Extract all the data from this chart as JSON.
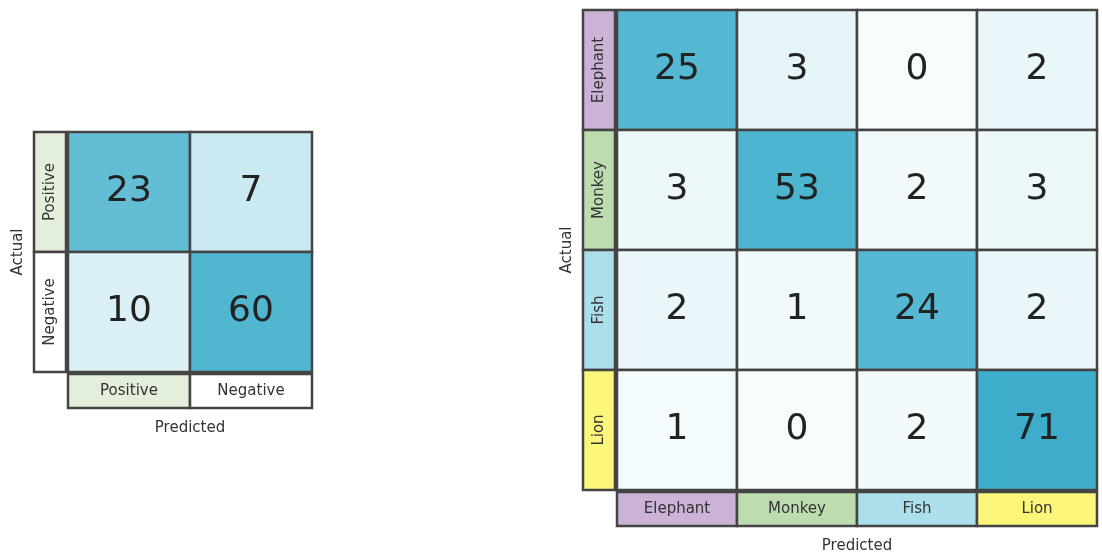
{
  "chart_data": [
    {
      "type": "heatmap",
      "xlabel": "Predicted",
      "ylabel": "Actual",
      "categories": [
        "Positive",
        "Negative"
      ],
      "y_categories": [
        "Positive",
        "Negative"
      ],
      "cells": [
        [
          23,
          7
        ],
        [
          10,
          60
        ]
      ],
      "data_labels": true,
      "color": "#35aac9",
      "colors": [
        "#e3eedb",
        "#ffffff"
      ]
    },
    {
      "type": "heatmap",
      "xlabel": "Predicted",
      "ylabel": "Actual",
      "categories": [
        "Elephant",
        "Monkey",
        "Fish",
        "Lion"
      ],
      "y_categories": [
        "Elephant",
        "Monkey",
        "Fish",
        "Lion"
      ],
      "cells": [
        [
          25,
          3,
          0,
          2
        ],
        [
          3,
          53,
          2,
          3
        ],
        [
          2,
          1,
          24,
          2
        ],
        [
          1,
          0,
          2,
          71
        ]
      ],
      "data_labels": true,
      "color": "#35aac9",
      "colors": [
        "#cbb2d6",
        "#bddcb0",
        "#acdfec",
        "#fbf57a"
      ]
    }
  ]
}
